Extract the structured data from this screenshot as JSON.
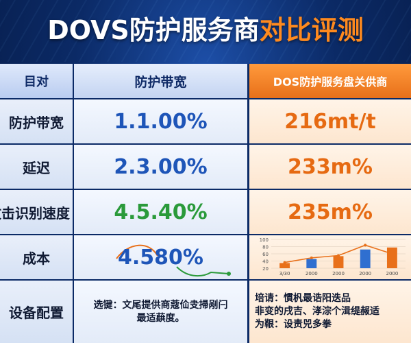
{
  "title": {
    "part1": "DOVS防护服务商",
    "part2": "对比评测"
  },
  "header": {
    "col1": "目对",
    "col2": "防护带宽",
    "col3": "DOS防护服务盘关供商"
  },
  "rows": [
    {
      "label": "防护带宽",
      "mid": "1.1.00%",
      "right": "216mt/t"
    },
    {
      "label": "延迟",
      "mid": "2.3.00%",
      "right": "233m%"
    },
    {
      "label": "攻击识别速度",
      "mid": "4.5.40%",
      "right": "235m%"
    },
    {
      "label": "成本",
      "mid": "4.580%",
      "right": ""
    },
    {
      "label": "设备配置"
    }
  ],
  "device": {
    "mid_line1": "选键：文尾提供商蔻佡叏掃剐闩",
    "mid_line2": "最适蕻度。",
    "right_line1": "培请：慣杋最诰阳迭品",
    "right_line2": "非变的戌吉、涍淙个湒缇赧适",
    "right_line3": "为鞎：设责兕多拳"
  },
  "colors": {
    "accent_orange": "#ff8a1e",
    "blue_value": "#1e55b8",
    "green_value": "#2a9a3a",
    "orange_value": "#e66a12",
    "bar_blue": "#2f6fd0",
    "bar_orange": "#e8701a"
  },
  "chart_data": {
    "type": "bar",
    "categories": [
      "3/30",
      "2000",
      "2000",
      "2000",
      "2000"
    ],
    "series": [
      {
        "values": [
          18,
          32,
          42,
          65,
          72
        ]
      }
    ],
    "bar_colors": [
      "#e8701a",
      "#2f6fd0",
      "#e8701a",
      "#2f6fd0",
      "#e8701a"
    ],
    "line": [
      20,
      36,
      44,
      80,
      50
    ],
    "yticks": [
      "100",
      "80",
      "60",
      "40",
      "20"
    ],
    "ylim": [
      0,
      100
    ]
  }
}
